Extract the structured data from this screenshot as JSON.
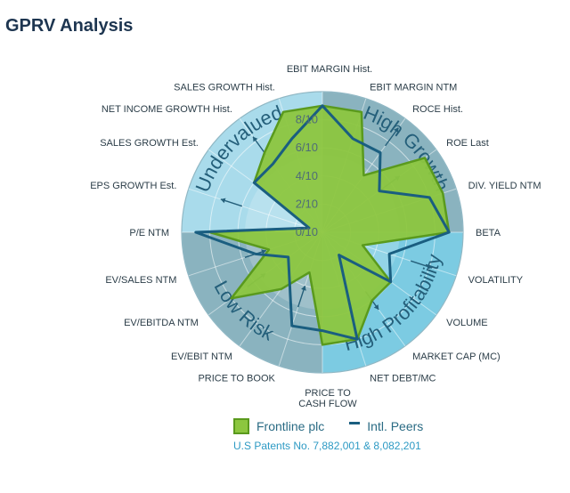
{
  "title": "GPRV Analysis",
  "legend": {
    "series1": "Frontline plc",
    "series2": "Intl. Peers"
  },
  "patent": "U.S Patents No. 7,882,001 & 8,082,201",
  "colors": {
    "series1_fill": "#8cc63f",
    "series1_stroke": "#5a9a1d",
    "series2_line": "#1a5e80",
    "quadrant_growth": "#a9dbeb",
    "quadrant_profitability": "#8ab3bf",
    "quadrant_risk": "#7ccbe2",
    "quadrant_value": "#8ab3bf"
  },
  "chart_data": {
    "type": "radar",
    "ring_labels": [
      "0/10",
      "2/10",
      "4/10",
      "6/10",
      "8/10"
    ],
    "rmax": 10,
    "quadrant_labels": [
      "High Growth",
      "High Profitability",
      "Low Risk",
      "Undervalued"
    ],
    "categories": [
      "EBIT MARGIN Hist.",
      "EBIT MARGIN NTM",
      "ROCE Hist.",
      "ROE  Last",
      "DIV. YIELD NTM",
      "BETA",
      "VOLATILITY",
      "VOLUME",
      "MARKET CAP (MC)",
      "NET DEBT/MC",
      "PRICE TO CASH FLOW",
      "PRICE TO BOOK",
      "EV/EBIT NTM",
      "EV/EBITDA NTM",
      "EV/SALES NTM",
      "P/E NTM",
      "EPS GROWTH Est.",
      "SALES GROWTH Est.",
      "NET INCOME GROWTH Hist.",
      "SALES GROWTH Hist."
    ],
    "series": [
      {
        "name": "Frontline plc",
        "values": [
          9,
          9,
          5,
          9,
          9,
          9,
          3,
          6,
          6,
          8,
          8,
          3,
          5,
          8,
          4,
          8,
          1,
          6,
          7,
          9
        ]
      },
      {
        "name": "Intl. Peers",
        "values": [
          9,
          7,
          7,
          5,
          8,
          9,
          5,
          6,
          2,
          8,
          7,
          7,
          4,
          3,
          5,
          9,
          1,
          6,
          6,
          7
        ]
      }
    ]
  }
}
